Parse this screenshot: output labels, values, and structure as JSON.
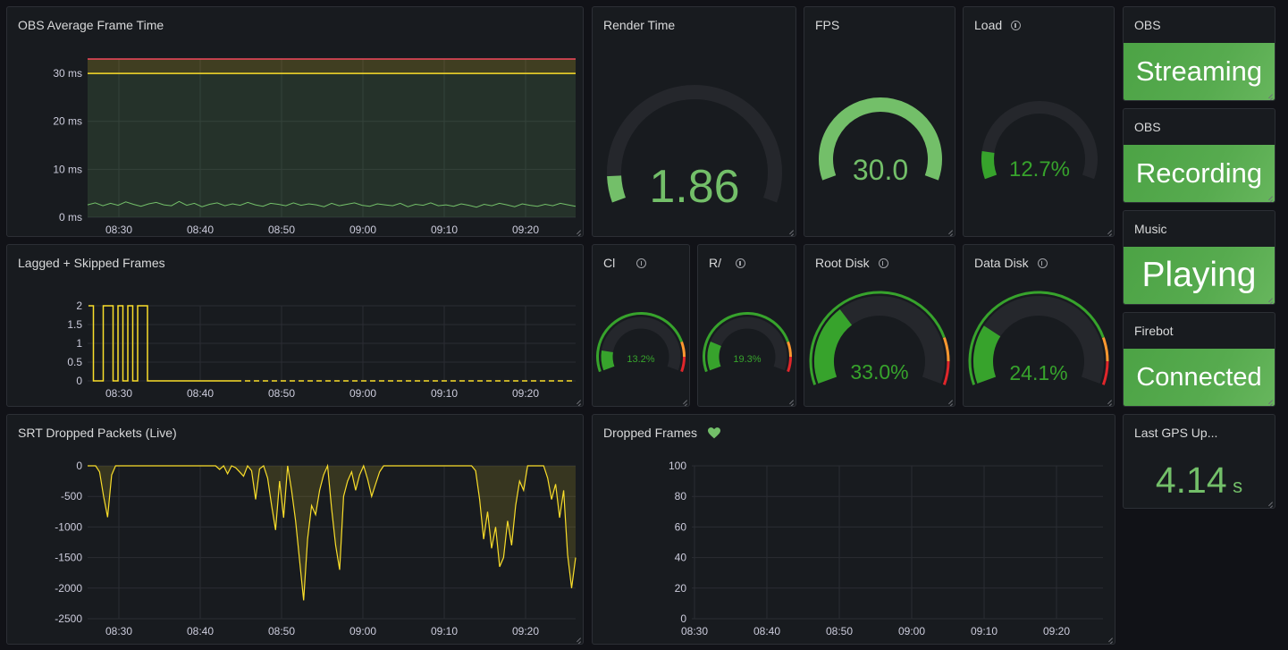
{
  "panels": {
    "frame_time": {
      "title": "OBS Average Frame Time"
    },
    "render_time": {
      "title": "Render Time",
      "value": "1.86",
      "fraction": 0.08
    },
    "fps": {
      "title": "FPS",
      "value": "30.0",
      "fraction": 1.0
    },
    "load": {
      "title": "Load",
      "value": "12.7%",
      "fraction": 0.127
    },
    "obs_streaming": {
      "title": "OBS",
      "value": "Streaming"
    },
    "obs_recording": {
      "title": "OBS",
      "value": "Recording"
    },
    "music": {
      "title": "Music",
      "value": "Playing"
    },
    "firebot": {
      "title": "Firebot",
      "value": "Connected"
    },
    "lagged": {
      "title": "Lagged + Skipped Frames"
    },
    "cpu": {
      "title": "Cl",
      "value": "13.2%",
      "fraction": 0.132
    },
    "ram": {
      "title": "R/",
      "value": "19.3%",
      "fraction": 0.193
    },
    "root_disk": {
      "title": "Root Disk",
      "value": "33.0%",
      "fraction": 0.33
    },
    "data_disk": {
      "title": "Data Disk",
      "value": "24.1%",
      "fraction": 0.241
    },
    "srt": {
      "title": "SRT Dropped Packets (Live)"
    },
    "dropped_frames": {
      "title": "Dropped Frames"
    },
    "gps": {
      "title": "Last GPS Up...",
      "value": "4.14",
      "unit": "s"
    }
  },
  "x_ticks": [
    "08:30",
    "08:40",
    "08:50",
    "09:00",
    "09:10",
    "09:20"
  ],
  "colors": {
    "green": "#73bf69",
    "dark_green": "#37a32c",
    "yellow": "#fade2a",
    "red": "#f2495c",
    "orange": "#ff9830",
    "gauge_track": "#25272c"
  },
  "chart_data": [
    {
      "type": "line",
      "title": "OBS Average Frame Time",
      "y_ticks": [
        "0 ms",
        "10 ms",
        "20 ms",
        "30 ms"
      ],
      "ylim": [
        0,
        33
      ],
      "thresholds": [
        30,
        33
      ],
      "series": [
        {
          "values": [
            2.6,
            3.0,
            2.4,
            2.9,
            2.5,
            3.2,
            2.7,
            2.3,
            2.8,
            3.1,
            2.6,
            2.4,
            3.3,
            2.5,
            2.9,
            2.2,
            2.7,
            3.0,
            2.4,
            2.8,
            2.5,
            3.1,
            2.6,
            2.3,
            2.9,
            2.7,
            2.4,
            3.0,
            2.5,
            2.8,
            2.6,
            2.2,
            2.9,
            2.4,
            2.7,
            3.0,
            2.5,
            2.3,
            2.8,
            2.6,
            2.4,
            2.9,
            2.2,
            2.7,
            2.5,
            3.0,
            2.4,
            2.6,
            2.3,
            2.8,
            2.5,
            2.1,
            2.7,
            2.4,
            2.9,
            2.6,
            2.2,
            2.8,
            2.5,
            2.3,
            2.7,
            2.4,
            2.9,
            2.6,
            2.3
          ]
        }
      ]
    },
    {
      "type": "line",
      "title": "Lagged + Skipped Frames",
      "y_ticks": [
        "0",
        "0.5",
        "1",
        "1.5",
        "2"
      ],
      "ylim": [
        0,
        2
      ],
      "series": [
        {
          "values": [
            2,
            0,
            0,
            2,
            2,
            0,
            2,
            0,
            2,
            0,
            2,
            2,
            0,
            0,
            0,
            0,
            0,
            0,
            0,
            0,
            0,
            0,
            0,
            0,
            0,
            0,
            0,
            0,
            0,
            0
          ]
        }
      ]
    },
    {
      "type": "area",
      "title": "SRT Dropped Packets (Live)",
      "y_ticks": [
        "0",
        "-500",
        "-1000",
        "-1500",
        "-2000",
        "-2500"
      ],
      "ylim": [
        -2500,
        0
      ],
      "series": [
        {
          "values": [
            0,
            0,
            0,
            -100,
            -500,
            -840,
            -150,
            0,
            0,
            0,
            0,
            0,
            0,
            0,
            0,
            0,
            0,
            0,
            0,
            0,
            0,
            0,
            0,
            0,
            0,
            0,
            0,
            0,
            0,
            0,
            0,
            0,
            0,
            -60,
            0,
            -130,
            0,
            -30,
            -100,
            -170,
            0,
            -80,
            -550,
            -50,
            0,
            -200,
            -650,
            -1050,
            -250,
            -850,
            0,
            -400,
            -900,
            -1550,
            -2200,
            -1200,
            -650,
            -800,
            -400,
            -150,
            0,
            -700,
            -1300,
            -1700,
            -500,
            -250,
            -100,
            -400,
            -150,
            0,
            -220,
            -500,
            -300,
            -100,
            0,
            0,
            0,
            0,
            0,
            0,
            0,
            0,
            0,
            0,
            0,
            0,
            0,
            0,
            0,
            0,
            0,
            0,
            0,
            0,
            0,
            0,
            0,
            -80,
            -550,
            -1200,
            -750,
            -1350,
            -1000,
            -1650,
            -1500,
            -900,
            -1300,
            -650,
            -250,
            -400,
            0,
            0,
            0,
            0,
            0,
            -200,
            -550,
            -300,
            -850,
            -400,
            -1450,
            -2000,
            -1500
          ]
        }
      ]
    },
    {
      "type": "line",
      "title": "Dropped Frames",
      "y_ticks": [
        "0",
        "20",
        "40",
        "60",
        "80",
        "100"
      ],
      "ylim": [
        0,
        100
      ],
      "series": []
    }
  ]
}
